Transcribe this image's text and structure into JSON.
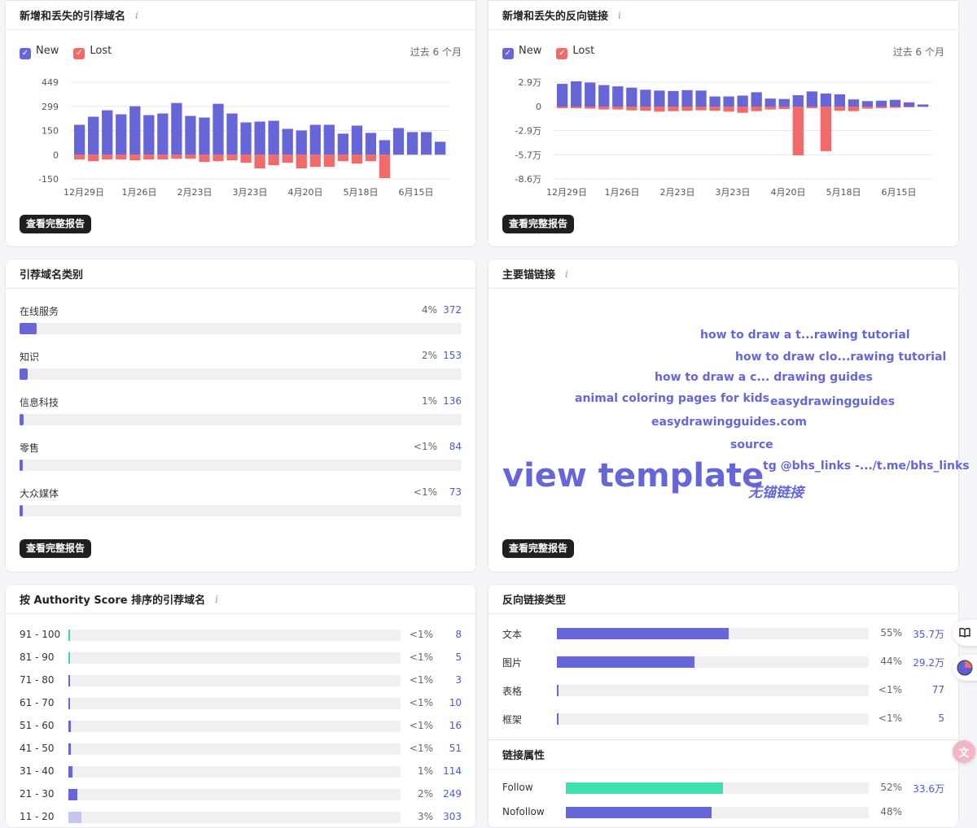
{
  "card1": {
    "title": "新增和丢失的引荐域名",
    "legend_new": "New",
    "legend_lost": "Lost",
    "period": "过去 6 个月",
    "button": "查看完整报告"
  },
  "card2": {
    "title": "新增和丢失的反向链接",
    "legend_new": "New",
    "legend_lost": "Lost",
    "period": "过去 6 个月",
    "button": "查看完整报告"
  },
  "card3": {
    "title": "引荐域名类别",
    "button": "查看完整报告",
    "items": [
      {
        "label": "在线服务",
        "pct": "4%",
        "count": "372",
        "share": 0.04
      },
      {
        "label": "知识",
        "pct": "2%",
        "count": "153",
        "share": 0.02
      },
      {
        "label": "信息科技",
        "pct": "1%",
        "count": "136",
        "share": 0.01
      },
      {
        "label": "零售",
        "pct": "<1%",
        "count": "84",
        "share": 0.007
      },
      {
        "label": "大众媒体",
        "pct": "<1%",
        "count": "73",
        "share": 0.006
      }
    ]
  },
  "card4": {
    "title": "主要锚链接",
    "button": "查看完整报告",
    "words": [
      {
        "text": "how to draw a t...rawing tutorial"
      },
      {
        "text": "how to draw clo...rawing tutorial"
      },
      {
        "text": "how to draw a c... drawing guides"
      },
      {
        "text": "animal coloring pages for kids"
      },
      {
        "text": "easydrawingguides"
      },
      {
        "text": "easydrawingguides.com"
      },
      {
        "text": "source"
      },
      {
        "text": "view template"
      },
      {
        "text": "tg @bhs_links -.../t.me/bhs_links"
      },
      {
        "text": "无锚链接"
      }
    ]
  },
  "card5": {
    "title": "按 Authority Score 排序的引荐域名",
    "rows": [
      {
        "label": "91 - 100",
        "pct": "<1%",
        "count": "8",
        "share": 0.004,
        "color": "#3fd6b0"
      },
      {
        "label": "81 - 90",
        "pct": "<1%",
        "count": "5",
        "share": 0.003,
        "color": "#3fd6b0"
      },
      {
        "label": "71 - 80",
        "pct": "<1%",
        "count": "3",
        "share": 0.003,
        "color": "#6666d8"
      },
      {
        "label": "61 - 70",
        "pct": "<1%",
        "count": "10",
        "share": 0.004,
        "color": "#6666d8"
      },
      {
        "label": "51 - 60",
        "pct": "<1%",
        "count": "16",
        "share": 0.005,
        "color": "#6666d8"
      },
      {
        "label": "41 - 50",
        "pct": "<1%",
        "count": "51",
        "share": 0.006,
        "color": "#6666d8"
      },
      {
        "label": "31 - 40",
        "pct": "1%",
        "count": "114",
        "share": 0.01,
        "color": "#6666d8"
      },
      {
        "label": "21 - 30",
        "pct": "2%",
        "count": "249",
        "share": 0.02,
        "color": "#6666d8"
      },
      {
        "label": "11 - 20",
        "pct": "3%",
        "count": "303",
        "share": 0.03,
        "color": "#c5c6ee"
      }
    ]
  },
  "card6": {
    "title": "反向链接类型",
    "rows": [
      {
        "label": "文本",
        "pct": "55%",
        "count": "35.7万",
        "share": 0.55
      },
      {
        "label": "图片",
        "pct": "44%",
        "count": "29.2万",
        "share": 0.44
      },
      {
        "label": "表格",
        "pct": "<1%",
        "count": "77",
        "share": 0.005
      },
      {
        "label": "框架",
        "pct": "<1%",
        "count": "5",
        "share": 0.005
      }
    ]
  },
  "card7": {
    "title": "链接属性",
    "rows": [
      {
        "label": "Follow",
        "pct": "52%",
        "count": "33.6万",
        "share": 0.52,
        "color": "#3fe0b0"
      },
      {
        "label": "Nofollow",
        "pct": "48%",
        "count": "",
        "share": 0.48,
        "color": "#6666d8"
      }
    ]
  },
  "chart_data": [
    {
      "type": "bar",
      "yticks": [
        "449",
        "299",
        "150",
        "0",
        "-150"
      ],
      "ylim": [
        -150,
        449
      ],
      "xticks": [
        "12月29日",
        "1月26日",
        "2月23日",
        "3月23日",
        "4月20日",
        "5月18日",
        "6月15日"
      ],
      "series": [
        {
          "name": "New",
          "color": "#6666d8",
          "values": [
            185,
            235,
            275,
            250,
            300,
            245,
            255,
            320,
            240,
            230,
            315,
            255,
            200,
            205,
            210,
            160,
            150,
            185,
            185,
            130,
            180,
            135,
            90,
            165,
            140,
            140,
            80
          ]
        },
        {
          "name": "Lost",
          "color": "#f26b6b",
          "values": [
            -30,
            -40,
            -30,
            -30,
            -35,
            -30,
            -30,
            -25,
            -25,
            -45,
            -40,
            -35,
            -50,
            -85,
            -65,
            -50,
            -85,
            -75,
            -75,
            -40,
            -55,
            -40,
            -145,
            0,
            0,
            0,
            0
          ]
        }
      ]
    },
    {
      "type": "bar",
      "yticks": [
        "2.9万",
        "0",
        "-2.9万",
        "-5.7万",
        "-8.6万"
      ],
      "ylim": [
        -86000,
        29000
      ],
      "xticks": [
        "12月29日",
        "1月26日",
        "2月23日",
        "3月23日",
        "4月20日",
        "5月18日",
        "6月15日"
      ],
      "series": [
        {
          "name": "New",
          "color": "#6666d8",
          "values": [
            27000,
            30000,
            28500,
            25500,
            24000,
            22500,
            20000,
            19000,
            18500,
            19500,
            19000,
            12000,
            12000,
            13000,
            17000,
            9500,
            9000,
            13500,
            18000,
            15500,
            14500,
            8500,
            6500,
            7000,
            8000,
            5000,
            2500
          ]
        },
        {
          "name": "Lost",
          "color": "#f26b6b",
          "values": [
            -2000,
            -2000,
            -2500,
            -3500,
            -3500,
            -4500,
            -5000,
            -6000,
            -5500,
            -5000,
            -4500,
            -5000,
            -6000,
            -7500,
            -5500,
            -3500,
            -3000,
            -58000,
            -2000,
            -53000,
            -5000,
            -5500,
            -2500,
            -2000,
            -1500,
            -1000,
            -500
          ]
        }
      ]
    }
  ]
}
